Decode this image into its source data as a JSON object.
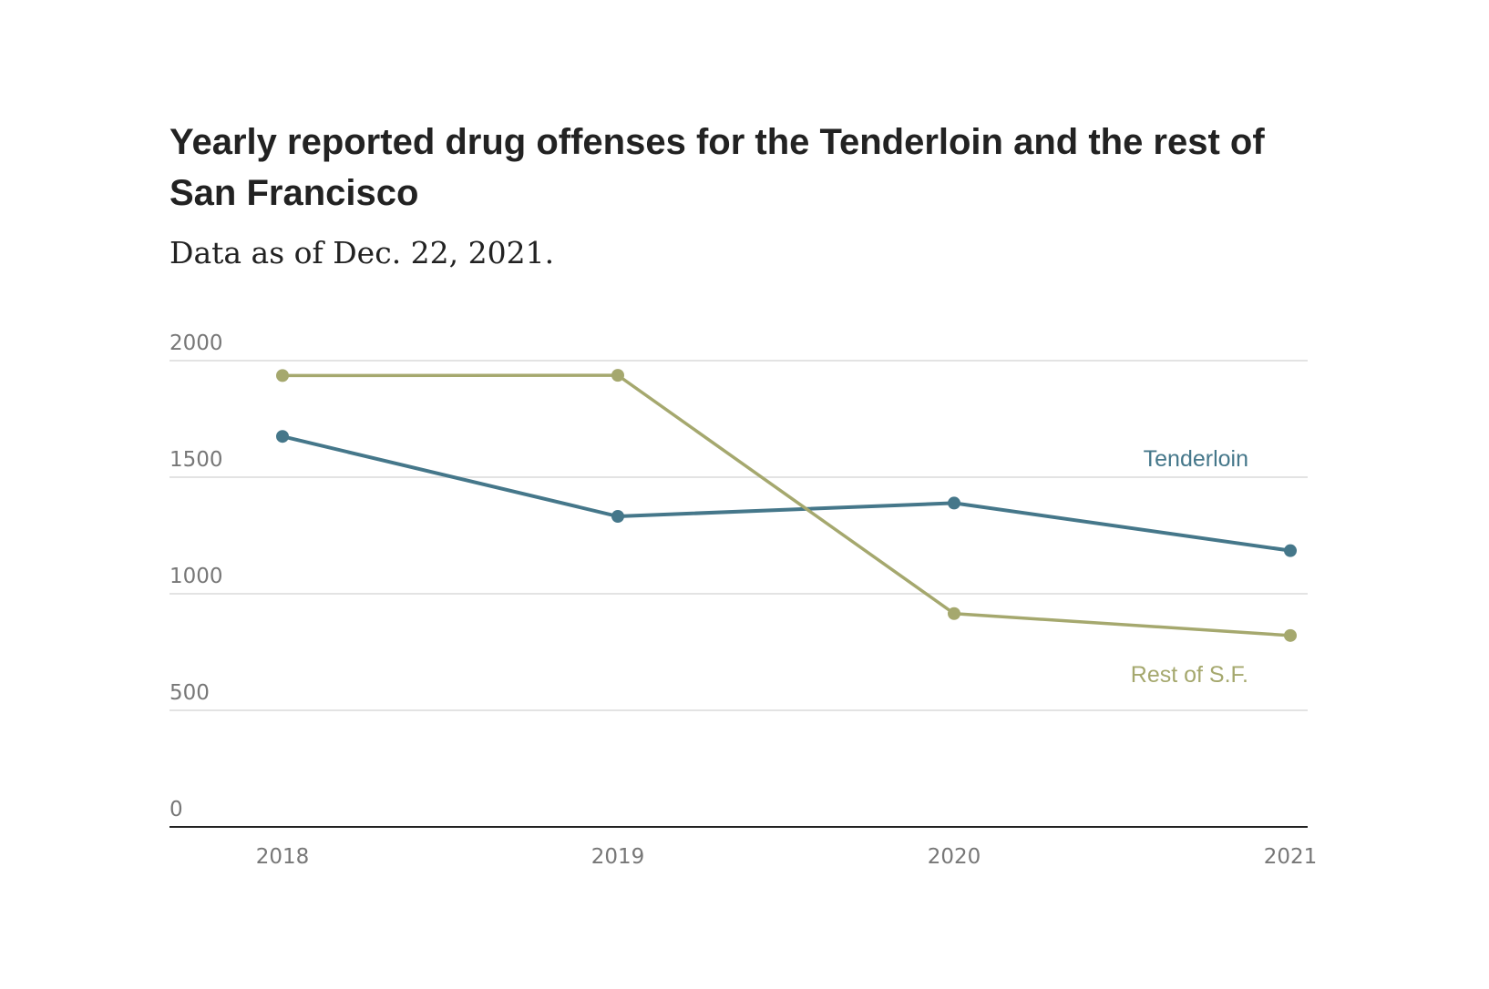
{
  "chart_data": {
    "type": "line",
    "title": "Yearly reported drug offenses for the Tenderloin and the rest of San Francisco",
    "subtitle": "Data as of Dec. 22, 2021.",
    "x": [
      "2018",
      "2019",
      "2020",
      "2021"
    ],
    "ylim": [
      0,
      2000
    ],
    "yticks": [
      "0",
      "500",
      "1000",
      "1500",
      "2000"
    ],
    "grid": true,
    "series": [
      {
        "name": "Tenderloin",
        "color": "#45778a",
        "values": [
          1675,
          1332,
          1389,
          1185
        ]
      },
      {
        "name": "Rest of S.F.",
        "color": "#a5a86e",
        "values": [
          1936,
          1937,
          915,
          821
        ]
      }
    ]
  }
}
